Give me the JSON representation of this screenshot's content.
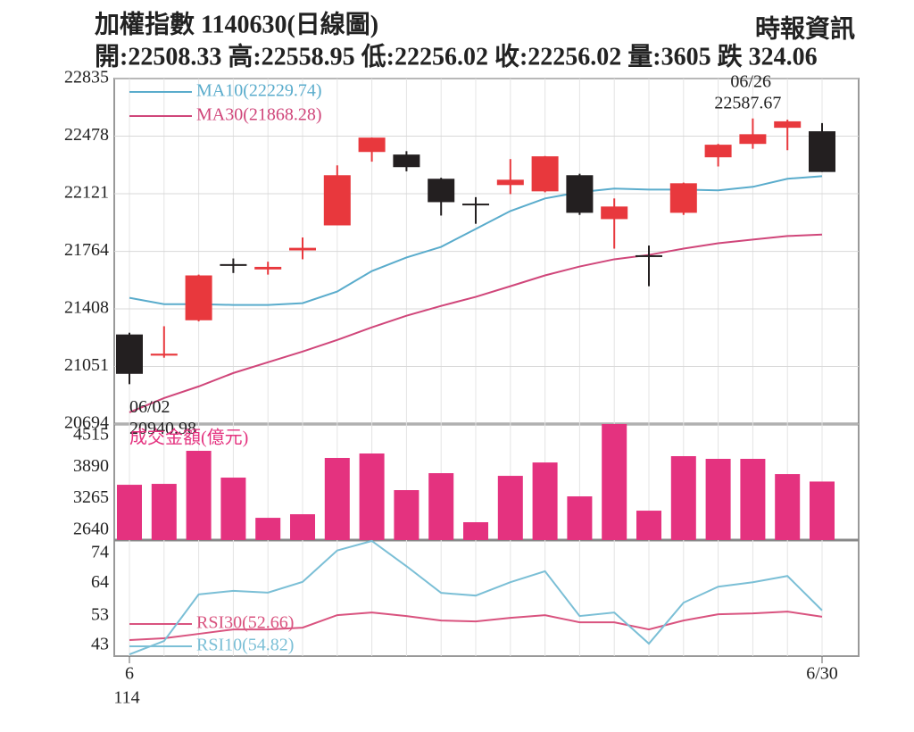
{
  "header": {
    "title": "加權指數 1140630(日線圖)",
    "source": "時報資訊",
    "summary": "開:22508.33 高:22558.95 低:22256.02 收:22256.02 量:3605 跌 324.06"
  },
  "chart_data": [
    {
      "type": "candlestick",
      "up_color": "#e8383d",
      "down_color": "#231f20",
      "open": [
        21249,
        21118,
        21337,
        21685,
        21652,
        21770,
        21925,
        22380,
        22364,
        22214,
        22060,
        22175,
        22136,
        22236,
        21964,
        21740,
        22003,
        22347,
        22430,
        22530,
        22508.33
      ],
      "high": [
        21260,
        21300,
        21620,
        21720,
        21700,
        21850,
        22297,
        22470,
        22385,
        22220,
        22100,
        22336,
        22355,
        22245,
        22092,
        21800,
        22190,
        22430,
        22587.67,
        22580,
        22558.95
      ],
      "low": [
        20940.98,
        21105,
        21330,
        21630,
        21620,
        21715,
        21925,
        22320,
        22260,
        21986,
        21935,
        22119,
        22130,
        21990,
        21781,
        21548,
        21990,
        22290,
        22400,
        22391,
        22256.02
      ],
      "close": [
        21005,
        21130,
        21615,
        21680,
        21668,
        21786,
        22236,
        22469,
        22286,
        22069,
        22053,
        22208,
        22353,
        22003,
        22042,
        21735,
        22186,
        22425,
        22490,
        22570,
        22256.02
      ],
      "series": [
        {
          "name": "MA10(22229.74)",
          "color": "#5aaccc",
          "values": [
            21476,
            21437,
            21437,
            21432,
            21432,
            21443,
            21515,
            21642,
            21726,
            21792,
            21903,
            22014,
            22092,
            22131,
            22153,
            22147,
            22147,
            22142,
            22164,
            22214,
            22229.74
          ]
        },
        {
          "name": "MA30(21868.28)",
          "color": "#d0467a",
          "values": [
            20766,
            20855,
            20927,
            21010,
            21077,
            21143,
            21215,
            21293,
            21365,
            21426,
            21482,
            21548,
            21615,
            21670,
            21715,
            21742,
            21781,
            21814,
            21837,
            21859,
            21868.28
          ]
        }
      ],
      "ylim": [
        20694,
        22835
      ],
      "yticks": [
        22835,
        22478,
        22121,
        21764,
        21408,
        21051,
        20694
      ],
      "grid": true,
      "annotations": [
        {
          "date": "06/02",
          "value": 20940.98,
          "index": 0
        },
        {
          "date": "06/26",
          "value": 22587.67,
          "index": 18
        }
      ]
    },
    {
      "type": "bar",
      "y_label": "成交金額(億元)",
      "color": "#e4327f",
      "values": [
        3541,
        3559,
        4214,
        3683,
        2886,
        2957,
        4073,
        4161,
        3435,
        3771,
        2799,
        3718,
        3983,
        3311,
        4745,
        3028,
        4108,
        4055,
        4055,
        3753,
        3605
      ],
      "ylim": [
        2445,
        4745
      ],
      "yticks": [
        4515,
        3890,
        3265,
        2640
      ]
    },
    {
      "type": "line",
      "categories": [
        "6",
        null,
        null,
        null,
        null,
        null,
        null,
        null,
        null,
        null,
        null,
        null,
        null,
        null,
        null,
        null,
        null,
        null,
        null,
        null,
        "6/30"
      ],
      "x_sublabel": "114",
      "series": [
        {
          "name": "RSI30(52.66)",
          "color": "#d9537f",
          "values": [
            44.8,
            45.4,
            46.9,
            48.4,
            48.4,
            49,
            53.2,
            54.1,
            52.9,
            51.4,
            51.1,
            52.3,
            53.2,
            50.8,
            50.8,
            48.4,
            51.4,
            53.5,
            53.8,
            54.4,
            52.66
          ]
        },
        {
          "name": "RSI10(54.82)",
          "color": "#7bbfd6",
          "values": [
            40,
            44.5,
            60.2,
            61.4,
            60.8,
            64.4,
            75,
            78.2,
            69.7,
            60.7,
            59.8,
            64.3,
            68,
            52.9,
            54.1,
            43.6,
            57.4,
            62.8,
            64.3,
            66.4,
            54.82
          ]
        }
      ],
      "ylim": [
        39.4,
        78.5
      ],
      "yticks": [
        74,
        64,
        53,
        43
      ]
    }
  ]
}
